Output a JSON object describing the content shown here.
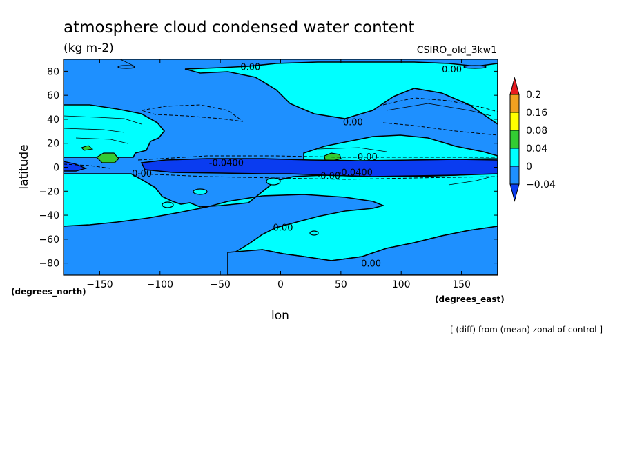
{
  "chart_data": {
    "type": "contour",
    "title": "atmosphere cloud condensed water content",
    "units": "(kg m-2)",
    "model": "CSIRO_old_3kw1",
    "xlabel": "lon",
    "ylabel": "latitude",
    "x_units": "(degrees_east)",
    "y_units": "(degrees_north)",
    "note": "[ (diff) from (mean) zonal of control ]",
    "xlim": [
      -180,
      180
    ],
    "ylim": [
      -90,
      90
    ],
    "x_ticks": [
      -150,
      -100,
      -50,
      0,
      50,
      100,
      150
    ],
    "y_ticks": [
      -80,
      -60,
      -40,
      -20,
      0,
      20,
      40,
      60,
      80
    ],
    "colorbar": {
      "levels": [
        "0.2",
        "0.16",
        "0.08",
        "0.04",
        "0",
        "-0.04"
      ],
      "colors": [
        "#e8191e",
        "#f0a020",
        "#ffff00",
        "#33cc33",
        "#00ffff",
        "#1e90ff",
        "#0a3cf0"
      ]
    },
    "fill_colors": {
      "below_-0.04": "#0a3cf0",
      "neg": "#1e90ff",
      "pos": "#00ffff",
      "mid": "#33cc33"
    },
    "contour_labels": [
      {
        "text": "0.00",
        "lon": -25,
        "lat": 84
      },
      {
        "text": "0.00",
        "lon": 142,
        "lat": 82
      },
      {
        "text": "0.00",
        "lon": 60,
        "lat": 38
      },
      {
        "text": "0.00",
        "lon": 72,
        "lat": 9
      },
      {
        "text": "-0.0400",
        "lon": -45,
        "lat": 4
      },
      {
        "text": "0.00",
        "lon": -115,
        "lat": -5
      },
      {
        "text": "-0.00",
        "lon": 40,
        "lat": -7
      },
      {
        "text": "-0.0400",
        "lon": 62,
        "lat": -4
      },
      {
        "text": "0.00",
        "lon": 2,
        "lat": -50
      },
      {
        "text": "0.00",
        "lon": 75,
        "lat": -80
      }
    ]
  }
}
